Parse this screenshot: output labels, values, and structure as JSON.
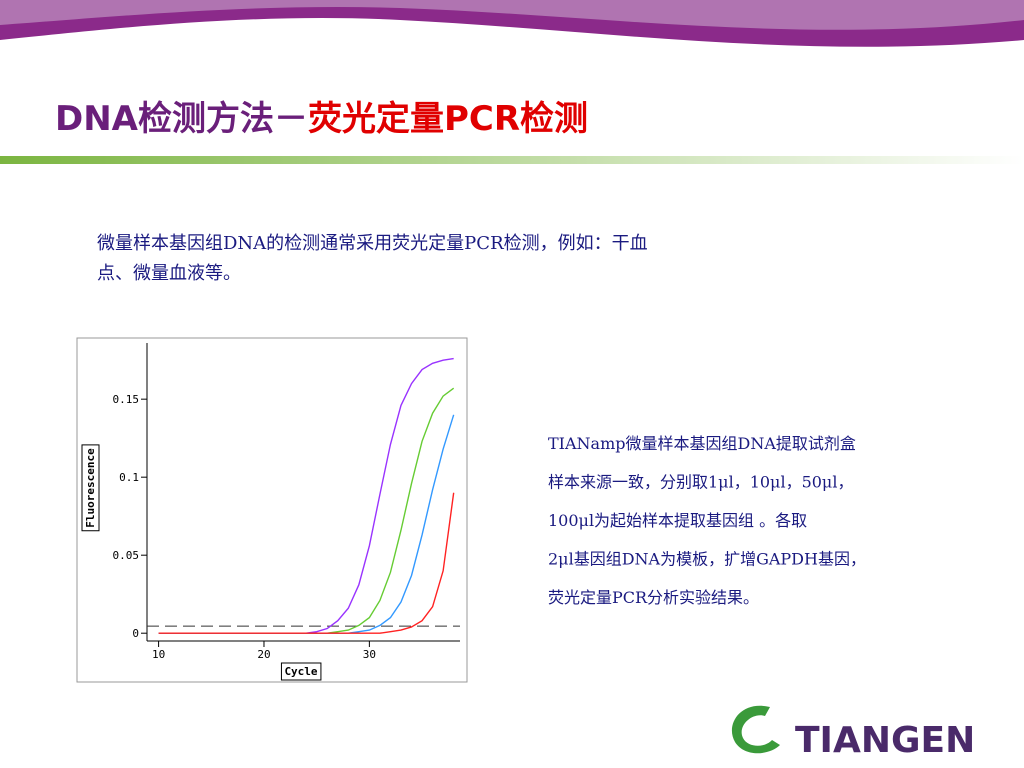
{
  "header": {
    "title_part1": "DNA检测方法－",
    "title_part2": "荧光定量PCR检测"
  },
  "intro": {
    "lines": [
      "微量样本基因组DNA的检测通常采用荧光定量PCR检测，例如：干血",
      "点、微量血液等。"
    ]
  },
  "description": {
    "lines": [
      "TIANamp微量样本基因组DNA提取试剂盒",
      "样本来源一致，分别取1μl，10μl，50μl，",
      "100μl为起始样本提取基因组 。各取",
      "2μl基因组DNA为模板，扩增GAPDH基因，",
      "荧光定量PCR分析实验结果。"
    ]
  },
  "logo": {
    "text": "TIANGEN"
  },
  "chart_data": {
    "type": "line",
    "x_label": "Cycle",
    "y_label": "Fluorescence",
    "xlim": [
      8.9,
      38.6
    ],
    "ylim": [
      -0.005,
      0.186
    ],
    "xticks": [
      10,
      20,
      30
    ],
    "yticks": [
      0,
      0.05,
      0.1,
      0.15
    ],
    "threshold": 0.0045,
    "x": [
      10,
      11,
      12,
      13,
      14,
      15,
      16,
      17,
      18,
      19,
      20,
      21,
      22,
      23,
      24,
      25,
      26,
      27,
      28,
      29,
      30,
      31,
      32,
      33,
      34,
      35,
      36,
      37,
      38
    ],
    "series": [
      {
        "color": "#9933ff",
        "values": [
          0,
          0,
          0,
          0,
          0,
          0,
          0,
          0,
          0,
          0,
          0,
          0,
          0,
          0,
          0,
          0.001,
          0.003,
          0.008,
          0.016,
          0.031,
          0.056,
          0.089,
          0.121,
          0.146,
          0.16,
          0.169,
          0.173,
          0.175,
          0.176
        ]
      },
      {
        "color": "#66cc33",
        "values": [
          0,
          0,
          0,
          0,
          0,
          0,
          0,
          0,
          0,
          0,
          0,
          0,
          0,
          0,
          0,
          0,
          0,
          0.001,
          0.002,
          0.005,
          0.01,
          0.021,
          0.039,
          0.066,
          0.096,
          0.123,
          0.141,
          0.152,
          0.157
        ]
      },
      {
        "color": "#3399ff",
        "values": [
          0,
          0,
          0,
          0,
          0,
          0,
          0,
          0,
          0,
          0,
          0,
          0,
          0,
          0,
          0,
          0,
          0,
          0,
          0,
          0.001,
          0.002,
          0.005,
          0.01,
          0.02,
          0.037,
          0.063,
          0.092,
          0.118,
          0.14
        ]
      },
      {
        "color": "#ff2222",
        "values": [
          0,
          0,
          0,
          0,
          0,
          0,
          0,
          0,
          0,
          0,
          0,
          0,
          0,
          0,
          0,
          0,
          0,
          0,
          0,
          0,
          0,
          0,
          0.001,
          0.002,
          0.004,
          0.008,
          0.017,
          0.04,
          0.09
        ]
      }
    ]
  }
}
